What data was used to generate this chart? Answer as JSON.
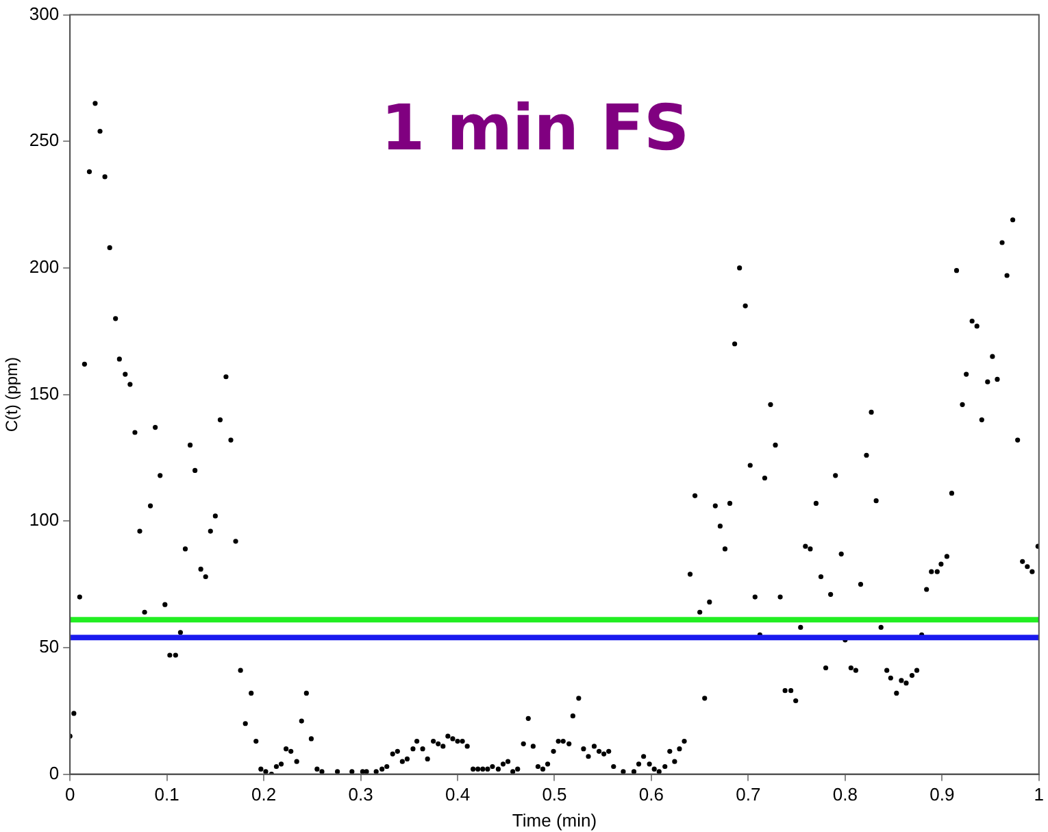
{
  "chart_data": {
    "type": "scatter",
    "title": "1 min FS",
    "xlabel": "Time (min)",
    "ylabel": "C(t) (ppm)",
    "x": [
      0,
      0.004,
      0.01,
      0.015,
      0.02,
      0.026,
      0.031,
      0.036,
      0.041,
      0.047,
      0.051,
      0.057,
      0.062,
      0.067,
      0.072,
      0.077,
      0.083,
      0.088,
      0.093,
      0.098,
      0.103,
      0.109,
      0.114,
      0.119,
      0.124,
      0.129,
      0.135,
      0.14,
      0.145,
      0.15,
      0.155,
      0.161,
      0.166,
      0.171,
      0.176,
      0.181,
      0.187,
      0.192,
      0.197,
      0.202,
      0.208,
      0.213,
      0.218,
      0.223,
      0.228,
      0.234,
      0.239,
      0.244,
      0.249,
      0.255,
      0.26,
      0.276,
      0.291,
      0.302,
      0.306,
      0.316,
      0.322,
      0.327,
      0.333,
      0.338,
      0.343,
      0.348,
      0.354,
      0.358,
      0.364,
      0.369,
      0.375,
      0.38,
      0.385,
      0.39,
      0.395,
      0.4,
      0.405,
      0.41,
      0.416,
      0.421,
      0.426,
      0.431,
      0.436,
      0.442,
      0.447,
      0.452,
      0.457,
      0.462,
      0.468,
      0.473,
      0.478,
      0.483,
      0.488,
      0.493,
      0.499,
      0.504,
      0.509,
      0.515,
      0.519,
      0.525,
      0.53,
      0.535,
      0.541,
      0.546,
      0.551,
      0.556,
      0.561,
      0.571,
      0.582,
      0.587,
      0.592,
      0.598,
      0.603,
      0.608,
      0.614,
      0.619,
      0.624,
      0.629,
      0.634,
      0.64,
      0.645,
      0.65,
      0.655,
      0.66,
      0.666,
      0.671,
      0.676,
      0.681,
      0.686,
      0.691,
      0.697,
      0.702,
      0.707,
      0.712,
      0.717,
      0.723,
      0.728,
      0.733,
      0.738,
      0.744,
      0.749,
      0.754,
      0.759,
      0.764,
      0.77,
      0.775,
      0.78,
      0.785,
      0.79,
      0.796,
      0.8,
      0.806,
      0.811,
      0.816,
      0.822,
      0.827,
      0.832,
      0.837,
      0.843,
      0.847,
      0.853,
      0.858,
      0.863,
      0.869,
      0.874,
      0.879,
      0.884,
      0.889,
      0.895,
      0.899,
      0.905,
      0.91,
      0.915,
      0.921,
      0.925,
      0.931,
      0.936,
      0.941,
      0.947,
      0.952,
      0.957,
      0.962,
      0.967,
      0.973,
      0.978,
      0.983,
      0.988,
      0.993,
      0.999
    ],
    "series": [
      {
        "color": "#000000",
        "values": [
          15,
          24,
          70,
          162,
          238,
          265,
          254,
          236,
          208,
          180,
          164,
          158,
          154,
          135,
          96,
          64,
          106,
          137,
          118,
          67,
          47,
          47,
          56,
          89,
          130,
          120,
          81,
          78,
          96,
          102,
          140,
          157,
          132,
          92,
          41,
          20,
          32,
          13,
          2,
          1,
          0,
          3,
          4,
          10,
          9,
          5,
          21,
          32,
          14,
          2,
          1,
          1,
          1,
          1,
          1,
          1,
          2,
          3,
          8,
          9,
          5,
          6,
          10,
          13,
          10,
          6,
          13,
          12,
          11,
          15,
          14,
          13,
          13,
          11,
          2,
          2,
          2,
          2,
          3,
          2,
          4,
          5,
          1,
          2,
          12,
          22,
          11,
          3,
          2,
          4,
          9,
          13,
          13,
          12,
          23,
          30,
          10,
          7,
          11,
          9,
          8,
          9,
          3,
          1,
          1,
          4,
          7,
          4,
          2,
          1,
          3,
          9,
          5,
          10,
          13,
          79,
          110,
          64,
          30,
          68,
          106,
          98,
          89,
          107,
          170,
          200,
          185,
          122,
          70,
          55,
          117,
          146,
          130,
          70,
          33,
          33,
          29,
          58,
          90,
          89,
          107,
          78,
          42,
          71,
          118,
          87,
          53,
          42,
          41,
          75,
          126,
          143,
          108,
          58,
          41,
          38,
          32,
          37,
          36,
          39,
          41,
          55,
          73,
          80,
          80,
          83,
          86,
          111,
          199,
          146,
          158,
          179,
          177,
          140,
          155,
          165,
          156,
          210,
          197,
          219,
          132,
          84,
          82,
          80,
          90
        ]
      }
    ],
    "xlim": [
      0,
      1
    ],
    "xticks": [
      0,
      0.1,
      0.2,
      0.3,
      0.4,
      0.5,
      0.6,
      0.7,
      0.8,
      0.9,
      1
    ],
    "ylim": [
      0,
      300
    ],
    "yticks": [
      0,
      50,
      100,
      150,
      200,
      250,
      300
    ],
    "ref_lines": [
      {
        "axis": "y",
        "value": 61,
        "color": "#22ee22"
      },
      {
        "axis": "y",
        "value": 54,
        "color": "#1a1aee"
      }
    ],
    "grid": false,
    "legend": false,
    "marker": "circle"
  }
}
